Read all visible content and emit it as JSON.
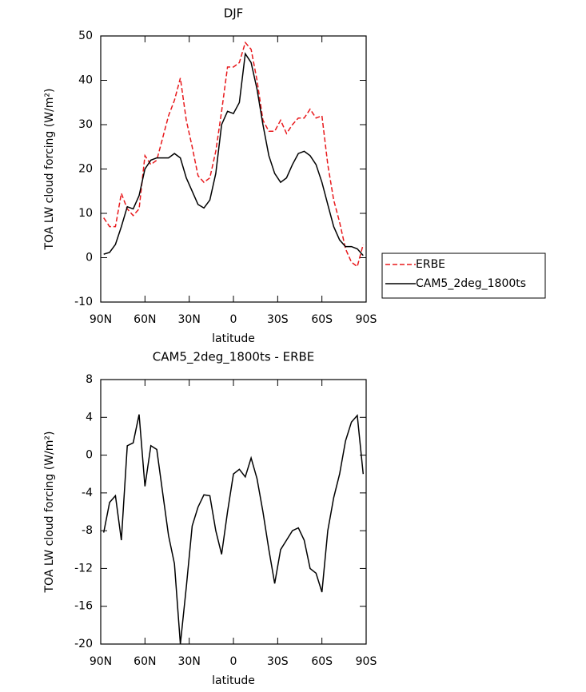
{
  "chart_data": [
    {
      "type": "line",
      "title": "DJF",
      "xlabel": "latitude",
      "ylabel": "TOA LW cloud forcing (W/m²)",
      "x": [
        88,
        84,
        80,
        76,
        72,
        68,
        64,
        60,
        56,
        52,
        48,
        44,
        40,
        36,
        32,
        28,
        24,
        20,
        16,
        12,
        8,
        4,
        0,
        -4,
        -8,
        -12,
        -16,
        -20,
        -24,
        -28,
        -32,
        -36,
        -40,
        -44,
        -48,
        -52,
        -56,
        -60,
        -64,
        -68,
        -72,
        -76,
        -80,
        -84,
        -88
      ],
      "series": [
        {
          "name": "ERBE",
          "color": "#e8191c",
          "line_style": "dashed",
          "values": [
            9,
            7,
            7,
            14.5,
            11,
            9.5,
            11,
            23,
            21,
            22,
            27,
            32,
            35.5,
            40.5,
            31,
            25,
            18.5,
            17,
            18,
            24,
            33,
            43,
            43,
            44,
            48.5,
            47,
            40,
            31,
            28.5,
            28.5,
            31,
            28,
            30,
            31.5,
            31.5,
            33.5,
            31.5,
            32,
            21,
            13,
            8,
            2,
            -1,
            -2,
            3
          ]
        },
        {
          "name": "CAM5_2deg_1800ts",
          "color": "#000000",
          "line_style": "solid",
          "values": [
            0.8,
            1.2,
            3,
            7,
            11.5,
            11,
            14,
            20,
            22,
            22.5,
            22.5,
            22.5,
            23.5,
            22.5,
            18,
            15,
            12,
            11.2,
            13,
            19,
            30,
            33,
            32.5,
            35,
            46,
            44,
            38,
            30,
            23,
            19,
            17,
            18,
            21,
            23.5,
            24,
            23,
            21,
            17,
            12,
            7,
            4,
            2.5,
            2.5,
            2,
            0.5
          ]
        }
      ],
      "xlim": [
        90,
        -90
      ],
      "xticks": [
        {
          "value": 90,
          "label": "90N"
        },
        {
          "value": 60,
          "label": "60N"
        },
        {
          "value": 30,
          "label": "30N"
        },
        0,
        {
          "value": -30,
          "label": "30S"
        },
        {
          "value": -60,
          "label": "60S"
        },
        {
          "value": -90,
          "label": "90S"
        }
      ],
      "ylim": [
        -10,
        50
      ],
      "yticks": [
        -10,
        0,
        10,
        20,
        30,
        40,
        50
      ],
      "legend": "right"
    },
    {
      "type": "line",
      "title": "CAM5_2deg_1800ts - ERBE",
      "xlabel": "latitude",
      "ylabel": "TOA LW cloud forcing (W/m²)",
      "x": [
        88,
        84,
        80,
        76,
        72,
        68,
        64,
        60,
        56,
        52,
        48,
        44,
        40,
        36,
        32,
        28,
        24,
        20,
        16,
        12,
        8,
        4,
        0,
        -4,
        -8,
        -12,
        -16,
        -20,
        -24,
        -28,
        -32,
        -36,
        -40,
        -44,
        -48,
        -52,
        -56,
        -60,
        -64,
        -68,
        -72,
        -76,
        -80,
        -84,
        -88
      ],
      "values": [
        -8.2,
        -5,
        -4.3,
        -9,
        1,
        1.3,
        4.3,
        -3.3,
        1,
        0.6,
        -4,
        -8.5,
        -11.5,
        -20,
        -14,
        -7.5,
        -5.5,
        -4.2,
        -4.3,
        -8,
        -10.5,
        -6,
        -2,
        -1.5,
        -2.3,
        -0.3,
        -2.5,
        -6,
        -10,
        -13.6,
        -10,
        -9,
        -8,
        -7.7,
        -9,
        -12,
        -12.5,
        -14.5,
        -8,
        -4.5,
        -2,
        1.5,
        3.5,
        4.2,
        -2
      ],
      "color": "#000000",
      "xlim": [
        90,
        -90
      ],
      "xticks": [
        {
          "value": 90,
          "label": "90N"
        },
        {
          "value": 60,
          "label": "60N"
        },
        {
          "value": 30,
          "label": "30N"
        },
        0,
        {
          "value": -30,
          "label": "30S"
        },
        {
          "value": -60,
          "label": "60S"
        },
        {
          "value": -90,
          "label": "90S"
        }
      ],
      "ylim": [
        -20,
        8
      ],
      "yticks": [
        -20,
        -16,
        -12,
        -8,
        -4,
        0,
        4,
        8
      ]
    }
  ]
}
